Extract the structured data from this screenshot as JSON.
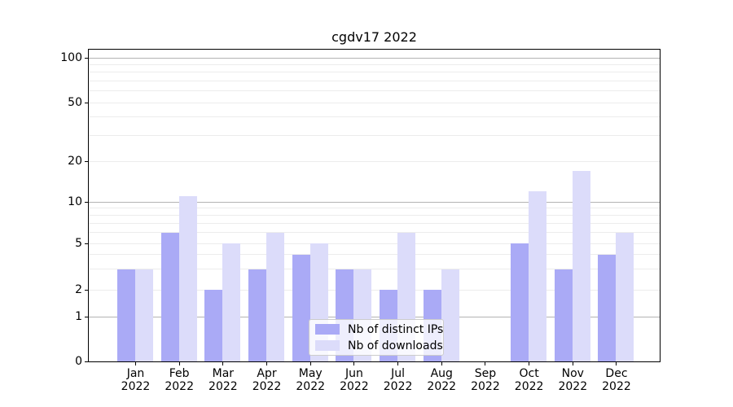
{
  "chart_data": {
    "type": "bar",
    "title": "cgdv17 2022",
    "categories": [
      "Jan 2022",
      "Feb 2022",
      "Mar 2022",
      "Apr 2022",
      "May 2022",
      "Jun 2022",
      "Jul 2022",
      "Aug 2022",
      "Sep 2022",
      "Oct 2022",
      "Nov 2022",
      "Dec 2022"
    ],
    "x_tick_month": [
      "Jan",
      "Feb",
      "Mar",
      "Apr",
      "May",
      "Jun",
      "Jul",
      "Aug",
      "Sep",
      "Oct",
      "Nov",
      "Dec"
    ],
    "x_tick_year": "2022",
    "series": [
      {
        "key": "ips",
        "name": "Nb of distinct IPs",
        "color": "#aaaaf6",
        "values": [
          3,
          6,
          2,
          3,
          4,
          3,
          2,
          2,
          0,
          5,
          3,
          4
        ]
      },
      {
        "key": "downloads",
        "name": "Nb of downloads",
        "color": "#dcdcfa",
        "values": [
          3,
          11,
          5,
          6,
          5,
          3,
          6,
          3,
          0,
          12,
          17,
          6
        ]
      }
    ],
    "yscale": "log-like with zero baseline",
    "ylim": [
      0,
      115
    ],
    "y_tick_values": [
      0,
      1,
      2,
      5,
      10,
      20,
      50,
      100
    ],
    "y_tick_labels": [
      "0",
      "1",
      "2",
      "5",
      "10",
      "20",
      "50",
      "100"
    ],
    "grid": {
      "major_values": [
        1,
        10,
        100
      ],
      "minor_values": [
        2,
        3,
        4,
        5,
        6,
        7,
        8,
        9,
        20,
        30,
        40,
        50,
        60,
        70,
        80,
        90
      ],
      "major_color": "#b3b3b3",
      "minor_color": "#ececec"
    },
    "legend": {
      "position": "lower-center"
    }
  },
  "colors": {
    "background": "#ffffff",
    "axis": "#000000",
    "text": "#000000",
    "legend_border": "#cccccc"
  }
}
